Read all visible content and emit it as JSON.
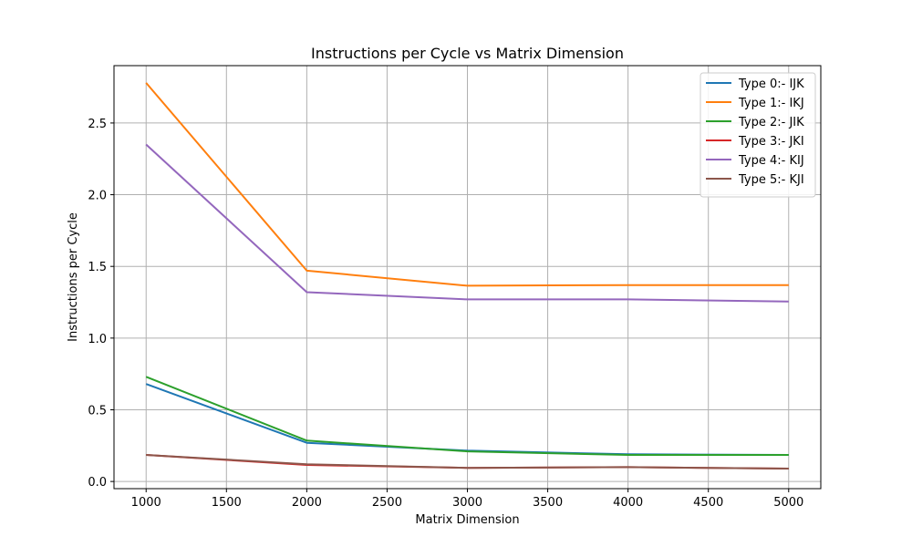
{
  "chart_data": {
    "type": "line",
    "title": "Instructions per Cycle vs Matrix Dimension",
    "xlabel": "Matrix Dimension",
    "ylabel": "Instructions per Cycle",
    "x": [
      1000,
      2000,
      3000,
      4000,
      5000
    ],
    "xlim": [
      800,
      5200
    ],
    "ylim": [
      -0.05,
      2.9
    ],
    "xticks": [
      1000,
      1500,
      2000,
      2500,
      3000,
      3500,
      4000,
      4500,
      5000
    ],
    "yticks": [
      0.0,
      0.5,
      1.0,
      1.5,
      2.0,
      2.5
    ],
    "ytick_labels": [
      "0.0",
      "0.5",
      "1.0",
      "1.5",
      "2.0",
      "2.5"
    ],
    "grid": true,
    "legend_position": "top-right",
    "series": [
      {
        "name": "Type 0:- IJK",
        "color": "#1f77b4",
        "values": [
          0.68,
          0.27,
          0.215,
          0.19,
          0.185
        ]
      },
      {
        "name": "Type 1:- IKJ",
        "color": "#ff7f0e",
        "values": [
          2.78,
          1.47,
          1.365,
          1.37,
          1.37
        ]
      },
      {
        "name": "Type 2:- JIK",
        "color": "#2ca02c",
        "values": [
          0.73,
          0.285,
          0.21,
          0.185,
          0.185
        ]
      },
      {
        "name": "Type 3:- JKI",
        "color": "#d62728",
        "values": [
          0.185,
          0.115,
          0.095,
          0.1,
          0.09
        ]
      },
      {
        "name": "Type 4:- KIJ",
        "color": "#9467bd",
        "values": [
          2.35,
          1.32,
          1.27,
          1.27,
          1.255
        ]
      },
      {
        "name": "Type 5:- KJI",
        "color": "#8c564b",
        "values": [
          0.185,
          0.12,
          0.095,
          0.1,
          0.09
        ]
      }
    ]
  }
}
